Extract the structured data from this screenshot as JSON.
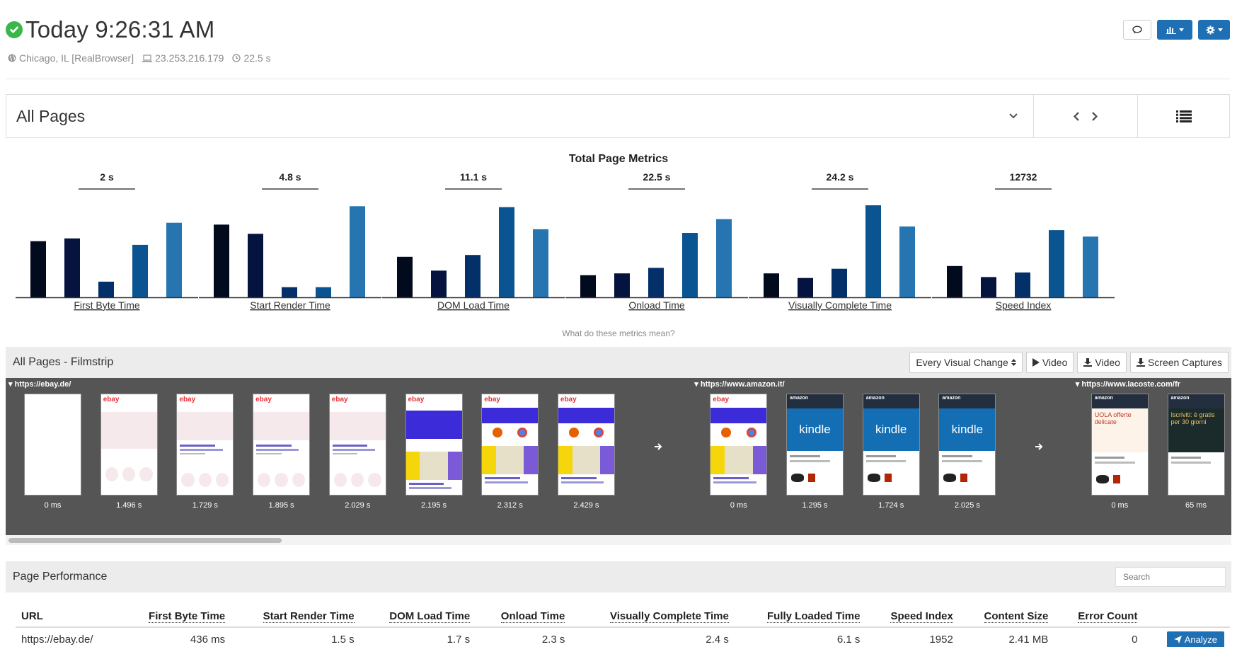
{
  "header": {
    "title": "Today 9:26:31 AM",
    "location": "Chicago, IL [RealBrowser]",
    "ip": "23.253.216.179",
    "duration": "22.5 s"
  },
  "page_selector": {
    "value": "All Pages"
  },
  "metrics": {
    "title": "Total Page Metrics",
    "help": "What do these metrics mean?"
  },
  "chart_data": {
    "type": "bar",
    "title": "Total Page Metrics",
    "series_colors": [
      "#020a1e",
      "#06133f",
      "#04306a",
      "#0a5591",
      "#2675b1"
    ],
    "groups": [
      {
        "label": "First Byte Time",
        "value_label": "2 s",
        "values": [
          0.61,
          0.64,
          0.17,
          0.57,
          0.81
        ]
      },
      {
        "label": "Start Render Time",
        "value_label": "4.8 s",
        "values": [
          0.79,
          0.69,
          0.11,
          0.11,
          0.99
        ]
      },
      {
        "label": "DOM Load Time",
        "value_label": "11.1 s",
        "values": [
          0.44,
          0.29,
          0.46,
          0.98,
          0.74
        ]
      },
      {
        "label": "Onload Time",
        "value_label": "22.5 s",
        "values": [
          0.24,
          0.26,
          0.32,
          0.7,
          0.85
        ]
      },
      {
        "label": "Visually Complete Time",
        "value_label": "24.2 s",
        "values": [
          0.26,
          0.21,
          0.31,
          1.0,
          0.77
        ]
      },
      {
        "label": "Speed Index",
        "value_label": "12732",
        "values": [
          0.34,
          0.22,
          0.27,
          0.73,
          0.66
        ]
      }
    ]
  },
  "filmstrip": {
    "title": "All Pages - Filmstrip",
    "select_value": "Every Visual Change",
    "buttons": [
      "Video",
      "Video",
      "Screen Captures"
    ],
    "pages": [
      {
        "url": "https://ebay.de/",
        "frames": [
          {
            "time": "0 ms",
            "kind": "blank"
          },
          {
            "time": "1.496 s",
            "kind": "ebay-pink"
          },
          {
            "time": "1.729 s",
            "kind": "ebay-text"
          },
          {
            "time": "1.895 s",
            "kind": "ebay-text"
          },
          {
            "time": "2.029 s",
            "kind": "ebay-text"
          },
          {
            "time": "2.195 s",
            "kind": "ebay-photo"
          },
          {
            "time": "2.312 s",
            "kind": "ebay-browsers"
          },
          {
            "time": "2.429 s",
            "kind": "ebay-browsers"
          }
        ]
      },
      {
        "url": "https://www.amazon.it/",
        "frames": [
          {
            "time": "0 ms",
            "kind": "ebay-browsers"
          },
          {
            "time": "1.295 s",
            "kind": "kindle"
          },
          {
            "time": "1.724 s",
            "kind": "kindle"
          },
          {
            "time": "2.025 s",
            "kind": "kindle"
          }
        ]
      },
      {
        "url": "https://www.lacoste.com/fr",
        "frames": [
          {
            "time": "0 ms",
            "kind": "amazon-promo"
          },
          {
            "time": "65 ms",
            "kind": "amazon-dark"
          }
        ]
      }
    ],
    "logo_text": "ebay",
    "amazon_text": "amazon",
    "kindle_text": "kindle",
    "promo_text": "UOLA offerte delicate",
    "dark_text": "Iscriviti: è gratis per 30 giorni"
  },
  "performance": {
    "title": "Page Performance",
    "search_placeholder": "Search",
    "columns": [
      "URL",
      "First Byte Time",
      "Start Render Time",
      "DOM Load Time",
      "Onload Time",
      "Visually Complete Time",
      "Fully Loaded Time",
      "Speed Index",
      "Content Size",
      "Error Count"
    ],
    "rows": [
      {
        "url": "https://ebay.de/",
        "first_byte": "436 ms",
        "start_render": "1.5 s",
        "dom_load": "1.7 s",
        "onload": "2.3 s",
        "visually_complete": "2.4 s",
        "fully_loaded": "6.1 s",
        "speed_index": "1952",
        "content_size": "2.41 MB",
        "error_count": "0",
        "action": "Analyze"
      }
    ]
  },
  "icons": [
    "check-circle-icon",
    "globe-icon",
    "laptop-icon",
    "clock-icon",
    "comment-icon",
    "bar-chart-icon",
    "gear-icon",
    "chevron-down-icon",
    "chevron-left-icon",
    "chevron-right-icon",
    "list-icon",
    "play-icon",
    "download-icon",
    "arrow-right-icon",
    "send-icon"
  ],
  "colors": {
    "accent": "#1f6fb4",
    "success": "#3cb54a",
    "filmstrip_bg": "#555555"
  }
}
